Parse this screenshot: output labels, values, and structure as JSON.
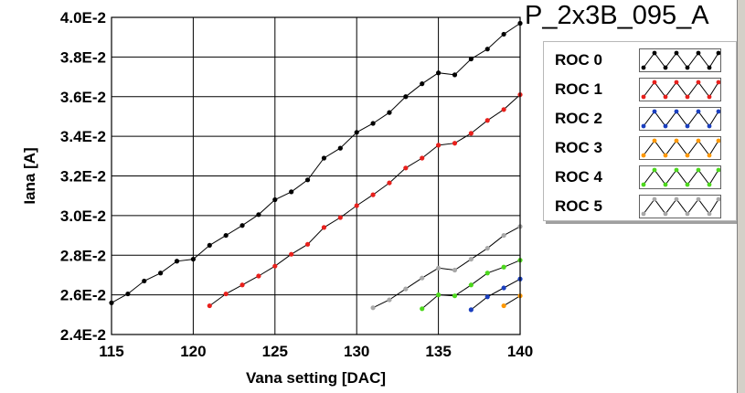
{
  "title": "P_2x3B_095_A",
  "chart_data": {
    "type": "line",
    "xlabel": "Vana setting [DAC]",
    "ylabel": "Iana [A]",
    "xlim": [
      115,
      140
    ],
    "ylim": [
      0.024,
      0.04
    ],
    "xticks": [
      115,
      120,
      125,
      130,
      135,
      140
    ],
    "xtick_labels": [
      "115",
      "120",
      "125",
      "130",
      "135",
      "140"
    ],
    "yticks": [
      0.024,
      0.026,
      0.028,
      0.03,
      0.032,
      0.034,
      0.036,
      0.038,
      0.04
    ],
    "ytick_labels": [
      "2.4E-2",
      "2.6E-2",
      "2.8E-2",
      "3.0E-2",
      "3.2E-2",
      "3.4E-2",
      "3.6E-2",
      "3.8E-2",
      "4.0E-2"
    ],
    "grid": true,
    "legend_position": "right",
    "series": [
      {
        "name": "ROC 0",
        "color": "#000000",
        "x": [
          115,
          116,
          117,
          118,
          119,
          120,
          121,
          122,
          123,
          124,
          125,
          126,
          127,
          128,
          129,
          130,
          131,
          132,
          133,
          134,
          135,
          136,
          137,
          138,
          139,
          140
        ],
        "y": [
          0.0256,
          0.02605,
          0.0267,
          0.0271,
          0.0277,
          0.0278,
          0.0285,
          0.029,
          0.0295,
          0.03005,
          0.0308,
          0.0312,
          0.0318,
          0.0329,
          0.0334,
          0.0342,
          0.03465,
          0.0352,
          0.036,
          0.03665,
          0.0372,
          0.0371,
          0.0379,
          0.0384,
          0.03915,
          0.0397
        ]
      },
      {
        "name": "ROC 1",
        "color": "#e8201c",
        "x": [
          121,
          122,
          123,
          124,
          125,
          126,
          127,
          128,
          129,
          130,
          131,
          132,
          133,
          134,
          135,
          136,
          137,
          138,
          139,
          140
        ],
        "y": [
          0.02545,
          0.02605,
          0.0265,
          0.02695,
          0.02745,
          0.02805,
          0.02855,
          0.0294,
          0.0299,
          0.0305,
          0.03105,
          0.03165,
          0.0324,
          0.0329,
          0.03355,
          0.03365,
          0.03415,
          0.0348,
          0.03535,
          0.0361
        ]
      },
      {
        "name": "ROC 2",
        "color": "#1a3fbf",
        "x": [
          137,
          138,
          139,
          140
        ],
        "y": [
          0.02525,
          0.0259,
          0.02635,
          0.0268
        ]
      },
      {
        "name": "ROC 3",
        "color": "#ff9800",
        "x": [
          139,
          140
        ],
        "y": [
          0.02545,
          0.02595
        ]
      },
      {
        "name": "ROC 4",
        "color": "#4cd81c",
        "x": [
          134,
          135,
          136,
          137,
          138,
          139,
          140
        ],
        "y": [
          0.0253,
          0.026,
          0.02595,
          0.0265,
          0.0271,
          0.0274,
          0.02775
        ]
      },
      {
        "name": "ROC 5",
        "color": "#a8a8a8",
        "x": [
          131,
          132,
          133,
          134,
          135,
          136,
          137,
          138,
          139,
          140
        ],
        "y": [
          0.02535,
          0.02575,
          0.0263,
          0.02685,
          0.02735,
          0.02725,
          0.0278,
          0.02835,
          0.029,
          0.02945
        ]
      }
    ]
  }
}
